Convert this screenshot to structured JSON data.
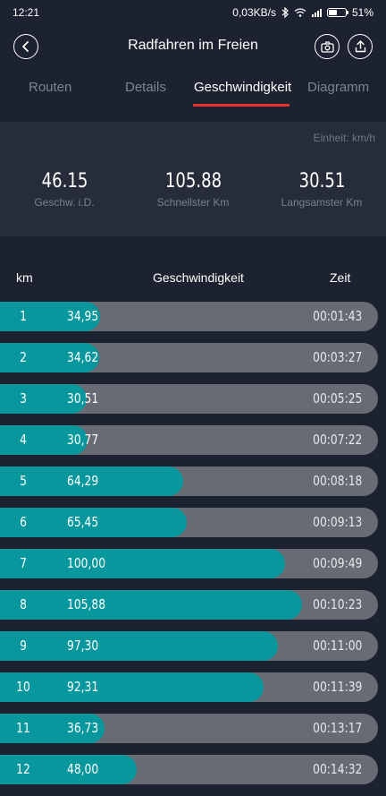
{
  "status_bar": {
    "time": "12:21",
    "network_speed": "0,03KB/s",
    "battery_level_percent": 51,
    "battery": "51%"
  },
  "header": {
    "title": "Radfahren im Freien"
  },
  "tabs": [
    {
      "label": "Routen",
      "active": false
    },
    {
      "label": "Details",
      "active": false
    },
    {
      "label": "Geschwindigkeit",
      "active": true
    },
    {
      "label": "Diagramm",
      "active": false
    }
  ],
  "summary": {
    "unit": "Einheit: km/h",
    "stats": [
      {
        "value": "46.15",
        "label": "Geschw. i.D."
      },
      {
        "value": "105.88",
        "label": "Schnellster Km"
      },
      {
        "value": "30.51",
        "label": "Langsamster Km"
      }
    ]
  },
  "list": {
    "headers": {
      "km": "km",
      "speed": "Geschwindigkeit",
      "time": "Zeit"
    },
    "max_speed": 105.88,
    "rows": [
      {
        "km": "1",
        "speed": "34,95",
        "time": "00:01:43",
        "value": 34.95
      },
      {
        "km": "2",
        "speed": "34,62",
        "time": "00:03:27",
        "value": 34.62
      },
      {
        "km": "3",
        "speed": "30,51",
        "time": "00:05:25",
        "value": 30.51
      },
      {
        "km": "4",
        "speed": "30,77",
        "time": "00:07:22",
        "value": 30.77
      },
      {
        "km": "5",
        "speed": "64,29",
        "time": "00:08:18",
        "value": 64.29
      },
      {
        "km": "6",
        "speed": "65,45",
        "time": "00:09:13",
        "value": 65.45
      },
      {
        "km": "7",
        "speed": "100,00",
        "time": "00:09:49",
        "value": 100.0
      },
      {
        "km": "8",
        "speed": "105,88",
        "time": "00:10:23",
        "value": 105.88
      },
      {
        "km": "9",
        "speed": "97,30",
        "time": "00:11:00",
        "value": 97.3
      },
      {
        "km": "10",
        "speed": "92,31",
        "time": "00:11:39",
        "value": 92.31
      },
      {
        "km": "11",
        "speed": "36,73",
        "time": "00:13:17",
        "value": 36.73
      },
      {
        "km": "12",
        "speed": "48,00",
        "time": "00:14:32",
        "value": 48.0
      }
    ]
  },
  "colors": {
    "background": "#1d2230",
    "panel": "#272c3b",
    "bar_fill": "#08979d",
    "bar_track": "#676b73",
    "tab_indicator": "#e8342c"
  }
}
